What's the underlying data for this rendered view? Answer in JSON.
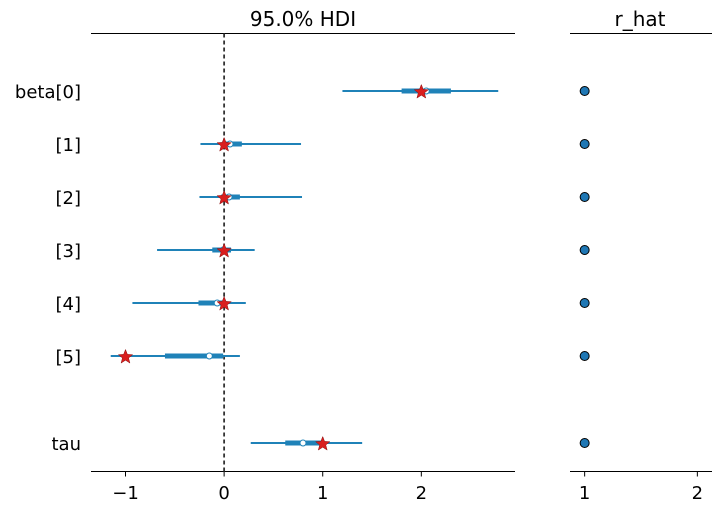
{
  "chart_data": {
    "type": "forest",
    "panels": {
      "hdi": {
        "title": "95.0% HDI",
        "xlim": [
          -1.35,
          2.95
        ],
        "xticks": [
          -1,
          0,
          1,
          2
        ],
        "xtick_labels": [
          "−1",
          "0",
          "1",
          "2"
        ],
        "reference_line_x": 0
      },
      "rhat": {
        "title": "r_hat",
        "xlim": [
          0.87,
          2.13
        ],
        "xticks": [
          1,
          2
        ],
        "xtick_labels": [
          "1",
          "2"
        ]
      }
    },
    "parameters": [
      {
        "label": "beta[0]",
        "hdi_low": 1.2,
        "hdi_high": 2.78,
        "iqr_low": 1.8,
        "iqr_high": 2.3,
        "median": 2.05,
        "true_value": 2.0,
        "r_hat": 1.0
      },
      {
        "label": "[1]",
        "hdi_low": -0.24,
        "hdi_high": 0.78,
        "iqr_low": -0.02,
        "iqr_high": 0.18,
        "median": 0.06,
        "true_value": 0.0,
        "r_hat": 1.0
      },
      {
        "label": "[2]",
        "hdi_low": -0.25,
        "hdi_high": 0.79,
        "iqr_low": -0.03,
        "iqr_high": 0.16,
        "median": 0.05,
        "true_value": 0.0,
        "r_hat": 1.0
      },
      {
        "label": "[3]",
        "hdi_low": -0.68,
        "hdi_high": 0.31,
        "iqr_low": -0.12,
        "iqr_high": 0.07,
        "median": -0.01,
        "true_value": 0.0,
        "r_hat": 1.0
      },
      {
        "label": "[4]",
        "hdi_low": -0.93,
        "hdi_high": 0.22,
        "iqr_low": -0.26,
        "iqr_high": 0.02,
        "median": -0.07,
        "true_value": 0.0,
        "r_hat": 1.0
      },
      {
        "label": "[5]",
        "hdi_low": -1.15,
        "hdi_high": 0.16,
        "iqr_low": -0.6,
        "iqr_high": -0.01,
        "median": -0.15,
        "true_value": -1.0,
        "r_hat": 1.0
      },
      {
        "label": "tau",
        "hdi_low": 0.27,
        "hdi_high": 1.4,
        "iqr_low": 0.62,
        "iqr_high": 1.0,
        "median": 0.8,
        "true_value": 1.0,
        "r_hat": 1.0
      }
    ],
    "colors": {
      "interval": "#1f82b8",
      "rhat_point": "#1f77b4",
      "true_marker": "#d91e1e",
      "median_fill": "#ffffff",
      "reference_line": "#333333"
    }
  }
}
